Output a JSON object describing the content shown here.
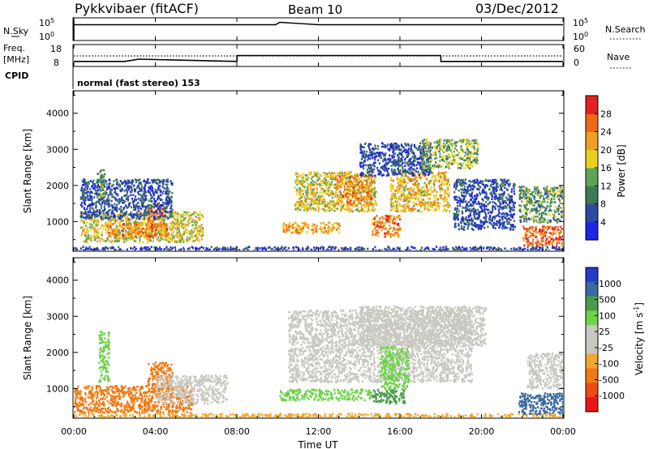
{
  "header": {
    "title": "Pykkvibaer (fitACF)",
    "beam": "Beam 10",
    "date": "03/Dec/2012"
  },
  "nsky_panel": {
    "left_label": "N.Sky",
    "left_ticks": [
      "10^5",
      "10^0"
    ],
    "right_label": "N.Search",
    "right_ticks": [
      "10^5",
      "10^0"
    ]
  },
  "freq_panel": {
    "left_label_1": "Freq.",
    "left_label_2": "[MHz]",
    "left_ticks": [
      "18",
      "8"
    ],
    "right_label": "Nave",
    "right_ticks": [
      "60",
      "0"
    ],
    "cpid_label": "CPID",
    "cpid_text": "normal (fast stereo) 153"
  },
  "x_axis": {
    "ticks": [
      "00:00",
      "04:00",
      "08:00",
      "12:00",
      "16:00",
      "20:00",
      "00:00"
    ],
    "label": "Time UT",
    "range_hours": [
      0,
      24
    ]
  },
  "colors": {
    "power_scale": [
      "#1f24e6",
      "#2e4aa0",
      "#3b7a55",
      "#5fa25a",
      "#e6d21e",
      "#f0a020",
      "#ef6a10",
      "#e42020"
    ],
    "velocity_scale": [
      "#ea1616",
      "#f04a14",
      "#f07a12",
      "#f0a830",
      "#c8c8c0",
      "#c8c8c0",
      "#6ed24a",
      "#4a9a4a",
      "#3a6aa0",
      "#2838c8"
    ],
    "ground_scatter": "#c8c8c0"
  },
  "chart_data": [
    {
      "type": "heatmap",
      "panel": "power",
      "ylabel": "Slant Range [km]",
      "yticks": [
        "1000",
        "2000",
        "3000",
        "4000"
      ],
      "ylim": [
        200,
        4600
      ],
      "xlim": [
        0,
        24
      ],
      "colorbar": {
        "label": "Power [dB]",
        "ticks": [
          "4",
          "8",
          "12",
          "16",
          "20",
          "24",
          "28"
        ],
        "range": [
          0,
          32
        ]
      },
      "regions": [
        {
          "t0": 0.3,
          "t1": 6.3,
          "r0": 450,
          "r1": 1300,
          "value": 18
        },
        {
          "t0": 1.6,
          "t1": 4.6,
          "r0": 600,
          "r1": 1000,
          "value": 24
        },
        {
          "t0": 3.6,
          "t1": 4.5,
          "r0": 850,
          "r1": 1500,
          "value": 24
        },
        {
          "t0": 0.3,
          "t1": 4.8,
          "r0": 1100,
          "r1": 2200,
          "value": 6
        },
        {
          "t0": 1.1,
          "t1": 1.5,
          "r0": 1700,
          "r1": 2500,
          "value": 12
        },
        {
          "t0": 10.8,
          "t1": 14.8,
          "r0": 1300,
          "r1": 2400,
          "value": 18
        },
        {
          "t0": 12.8,
          "t1": 14.6,
          "r0": 1500,
          "r1": 2300,
          "value": 24
        },
        {
          "t0": 10.2,
          "t1": 13.0,
          "r0": 700,
          "r1": 1000,
          "value": 22
        },
        {
          "t0": 14.6,
          "t1": 16.0,
          "r0": 600,
          "r1": 1200,
          "value": 24
        },
        {
          "t0": 15.5,
          "t1": 18.4,
          "r0": 1300,
          "r1": 2400,
          "value": 20
        },
        {
          "t0": 14.0,
          "t1": 17.5,
          "r0": 2300,
          "r1": 3200,
          "value": 6
        },
        {
          "t0": 17.0,
          "t1": 19.8,
          "r0": 2500,
          "r1": 3300,
          "value": 14
        },
        {
          "t0": 18.6,
          "t1": 21.6,
          "r0": 800,
          "r1": 2200,
          "value": 6
        },
        {
          "t0": 21.8,
          "t1": 24.0,
          "r0": 1000,
          "r1": 2000,
          "value": 12
        },
        {
          "t0": 22.0,
          "t1": 24.0,
          "r0": 350,
          "r1": 900,
          "value": 27
        },
        {
          "t0": 0.0,
          "t1": 24.0,
          "r0": 200,
          "r1": 330,
          "value": 5
        }
      ]
    },
    {
      "type": "heatmap",
      "panel": "velocity",
      "ylabel": "Slant Range [km]",
      "yticks": [
        "1000",
        "2000",
        "3000",
        "4000"
      ],
      "ylim": [
        200,
        4600
      ],
      "xlim": [
        0,
        24
      ],
      "colorbar": {
        "label": "Velocity [m s^-1]",
        "ticks": [
          "1000",
          "500",
          "100",
          "25",
          "-25",
          "-100",
          "-500",
          "-1000"
        ]
      },
      "regions": [
        {
          "t0": 0.0,
          "t1": 5.8,
          "r0": 350,
          "r1": 1100,
          "value": -300
        },
        {
          "t0": 3.6,
          "t1": 4.8,
          "r0": 1100,
          "r1": 1750,
          "value": -300
        },
        {
          "t0": 4.0,
          "t1": 7.5,
          "r0": 600,
          "r1": 1400,
          "value": 0
        },
        {
          "t0": 1.2,
          "t1": 1.7,
          "r0": 1200,
          "r1": 2600,
          "value": 80
        },
        {
          "t0": 10.5,
          "t1": 19.5,
          "r0": 1200,
          "r1": 3200,
          "value": 0
        },
        {
          "t0": 14.0,
          "t1": 20.2,
          "r0": 2200,
          "r1": 3300,
          "value": 0
        },
        {
          "t0": 10.0,
          "t1": 14.6,
          "r0": 700,
          "r1": 1000,
          "value": 70
        },
        {
          "t0": 14.6,
          "t1": 16.2,
          "r0": 600,
          "r1": 1000,
          "value": 300
        },
        {
          "t0": 15.0,
          "t1": 16.4,
          "r0": 1000,
          "r1": 2200,
          "value": 70
        },
        {
          "t0": 21.8,
          "t1": 24.0,
          "r0": 300,
          "r1": 900,
          "value": 700
        },
        {
          "t0": 22.2,
          "t1": 24.0,
          "r0": 1000,
          "r1": 2000,
          "value": 0
        },
        {
          "t0": 0.0,
          "t1": 24.0,
          "r0": 200,
          "r1": 330,
          "value": -60
        }
      ]
    },
    {
      "type": "line",
      "panel": "nsky",
      "description_free": true,
      "x": [
        0,
        2,
        4,
        6,
        8,
        9.9,
        10.1,
        12,
        14,
        16,
        18,
        20,
        22,
        24
      ],
      "y_log10": [
        3.9,
        3.9,
        3.9,
        3.9,
        3.9,
        3.9,
        4.5,
        3.9,
        3.9,
        3.9,
        3.9,
        3.9,
        3.9,
        3.9
      ]
    },
    {
      "type": "line",
      "panel": "freq",
      "x": [
        0,
        2.5,
        3.2,
        8.0,
        8.01,
        18.0,
        18.01,
        24
      ],
      "y": [
        10.1,
        10.1,
        11.2,
        10.1,
        13.0,
        13.0,
        10.1,
        10.1
      ],
      "ylim": [
        8,
        18
      ]
    }
  ]
}
